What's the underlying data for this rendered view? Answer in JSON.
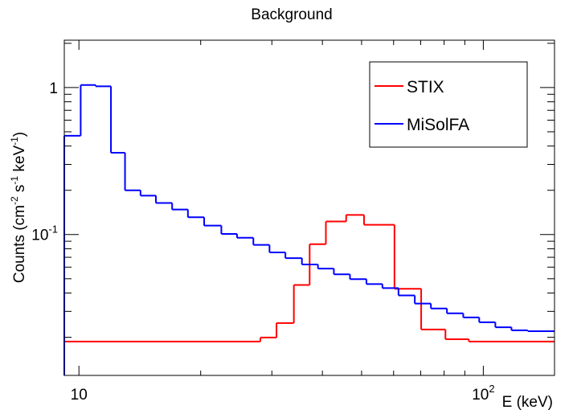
{
  "chart_data": {
    "type": "histogram",
    "title": "Background",
    "x_label": "E (keV)",
    "y_label_parts": [
      {
        "text": "Counts (cm"
      },
      {
        "text": "-2",
        "sup": true
      },
      {
        "text": " s"
      },
      {
        "text": "-1",
        "sup": true
      },
      {
        "text": " keV"
      },
      {
        "text": "-1",
        "sup": true
      },
      {
        "text": ")"
      }
    ],
    "xscale": "log",
    "yscale": "log",
    "xlim": [
      9.2,
      150
    ],
    "ylim": [
      0.011,
      2.1
    ],
    "xticks": [
      10,
      {
        "value": 100,
        "label": "10",
        "sup": "2"
      }
    ],
    "xticks_minor": [
      20,
      30,
      40,
      50,
      60,
      70,
      80,
      90
    ],
    "yticks": [
      {
        "value": 0.1,
        "label": "10",
        "sup": "-1"
      },
      1
    ],
    "yticks_minor": [
      0.02,
      0.03,
      0.04,
      0.05,
      0.06,
      0.07,
      0.08,
      0.09,
      0.2,
      0.3,
      0.4,
      0.5,
      0.6,
      0.7,
      0.8,
      0.9,
      2
    ],
    "grid": false,
    "legend": "upper right",
    "series": [
      {
        "name": "STIX",
        "color": "#ff0000",
        "bins": [
          9.2,
          28.1,
          30.8,
          34.0,
          37.2,
          40.8,
          45.8,
          50.7,
          60.3,
          70.2,
          80.6,
          92.1,
          150
        ],
        "values": [
          0.0187,
          0.0199,
          0.025,
          0.0454,
          0.0859,
          0.1226,
          0.136,
          0.1165,
          0.0427,
          0.0226,
          0.0194,
          0.0187
        ]
      },
      {
        "name": "MiSolFA",
        "color": "#0000ff",
        "bins": [
          9.2,
          10.1,
          11.0,
          12.0,
          13.0,
          14.2,
          15.5,
          17.0,
          18.6,
          20.4,
          22.5,
          24.6,
          27.0,
          29.6,
          32.4,
          35.6,
          39.0,
          42.7,
          46.8,
          51.4,
          56.3,
          61.7,
          67.7,
          74.2,
          81.3,
          89.2,
          97.7,
          107.1,
          117.4,
          128.8,
          150
        ],
        "values": [
          0.47,
          1.04,
          1.02,
          0.36,
          0.2,
          0.184,
          0.164,
          0.148,
          0.131,
          0.115,
          0.101,
          0.095,
          0.085,
          0.0756,
          0.0691,
          0.0625,
          0.0586,
          0.0536,
          0.0497,
          0.046,
          0.0432,
          0.0385,
          0.0339,
          0.0314,
          0.0291,
          0.0273,
          0.0253,
          0.0234,
          0.0223,
          0.022
        ]
      }
    ]
  }
}
